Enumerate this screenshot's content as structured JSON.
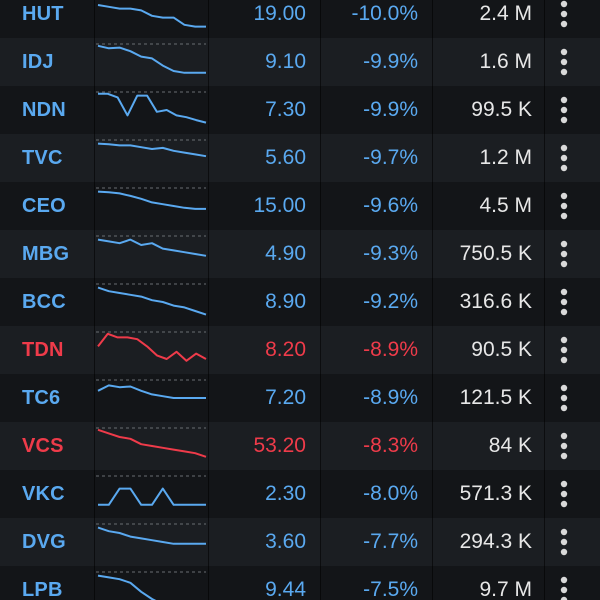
{
  "colors": {
    "blue": "#5aa9f0",
    "red": "#ef3b4a",
    "text": "#e7e7e7"
  },
  "rows": [
    {
      "symbol": "HUT",
      "price": "19.00",
      "change": "-10.0%",
      "volume": "2.4 M",
      "color": "blue",
      "spark": [
        0.25,
        0.3,
        0.35,
        0.35,
        0.4,
        0.55,
        0.6,
        0.6,
        0.8,
        0.85,
        0.85
      ]
    },
    {
      "symbol": "IDJ",
      "price": "9.10",
      "change": "-9.9%",
      "volume": "1.6 M",
      "color": "blue",
      "spark": [
        0.05,
        0.12,
        0.1,
        0.2,
        0.35,
        0.4,
        0.6,
        0.75,
        0.8,
        0.8,
        0.8
      ]
    },
    {
      "symbol": "NDN",
      "price": "7.30",
      "change": "-9.9%",
      "volume": "99.5 K",
      "color": "blue",
      "spark": [
        0.05,
        0.05,
        0.15,
        0.65,
        0.1,
        0.1,
        0.55,
        0.5,
        0.65,
        0.7,
        0.78,
        0.85
      ]
    },
    {
      "symbol": "TVC",
      "price": "5.60",
      "change": "-9.7%",
      "volume": "1.2 M",
      "color": "blue",
      "spark": [
        0.1,
        0.12,
        0.15,
        0.15,
        0.2,
        0.25,
        0.22,
        0.3,
        0.35,
        0.4,
        0.45
      ]
    },
    {
      "symbol": "CEO",
      "price": "15.00",
      "change": "-9.6%",
      "volume": "4.5 M",
      "color": "blue",
      "spark": [
        0.1,
        0.12,
        0.15,
        0.22,
        0.3,
        0.4,
        0.45,
        0.5,
        0.55,
        0.58,
        0.58
      ]
    },
    {
      "symbol": "MBG",
      "price": "4.90",
      "change": "-9.3%",
      "volume": "750.5 K",
      "color": "blue",
      "spark": [
        0.1,
        0.15,
        0.2,
        0.1,
        0.25,
        0.2,
        0.35,
        0.4,
        0.45,
        0.5,
        0.55
      ]
    },
    {
      "symbol": "BCC",
      "price": "8.90",
      "change": "-9.2%",
      "volume": "316.6 K",
      "color": "blue",
      "spark": [
        0.1,
        0.2,
        0.25,
        0.3,
        0.35,
        0.45,
        0.5,
        0.6,
        0.65,
        0.75,
        0.85
      ]
    },
    {
      "symbol": "TDN",
      "price": "8.20",
      "change": "-8.9%",
      "volume": "90.5 K",
      "color": "red",
      "spark": [
        0.4,
        0.05,
        0.15,
        0.15,
        0.2,
        0.4,
        0.65,
        0.75,
        0.55,
        0.8,
        0.6,
        0.75
      ]
    },
    {
      "symbol": "TC6",
      "price": "7.20",
      "change": "-8.9%",
      "volume": "121.5 K",
      "color": "blue",
      "spark": [
        0.3,
        0.15,
        0.2,
        0.18,
        0.3,
        0.4,
        0.45,
        0.5,
        0.5,
        0.5,
        0.5
      ]
    },
    {
      "symbol": "VCS",
      "price": "53.20",
      "change": "-8.3%",
      "volume": "84 K",
      "color": "red",
      "spark": [
        0.05,
        0.15,
        0.25,
        0.3,
        0.45,
        0.5,
        0.55,
        0.6,
        0.65,
        0.7,
        0.8
      ]
    },
    {
      "symbol": "VKC",
      "price": "2.30",
      "change": "-8.0%",
      "volume": "571.3 K",
      "color": "blue",
      "spark": [
        0.8,
        0.8,
        0.35,
        0.35,
        0.8,
        0.8,
        0.35,
        0.8,
        0.8,
        0.8,
        0.8
      ]
    },
    {
      "symbol": "DVG",
      "price": "3.60",
      "change": "-7.7%",
      "volume": "294.3 K",
      "color": "blue",
      "spark": [
        0.1,
        0.2,
        0.25,
        0.35,
        0.4,
        0.45,
        0.5,
        0.55,
        0.55,
        0.55,
        0.55
      ]
    },
    {
      "symbol": "LPB",
      "price": "9.44",
      "change": "-7.5%",
      "volume": "9.7 M",
      "color": "blue",
      "spark": [
        0.1,
        0.15,
        0.2,
        0.3,
        0.55,
        0.75,
        0.9,
        0.95,
        0.95,
        0.95,
        0.95
      ]
    }
  ]
}
